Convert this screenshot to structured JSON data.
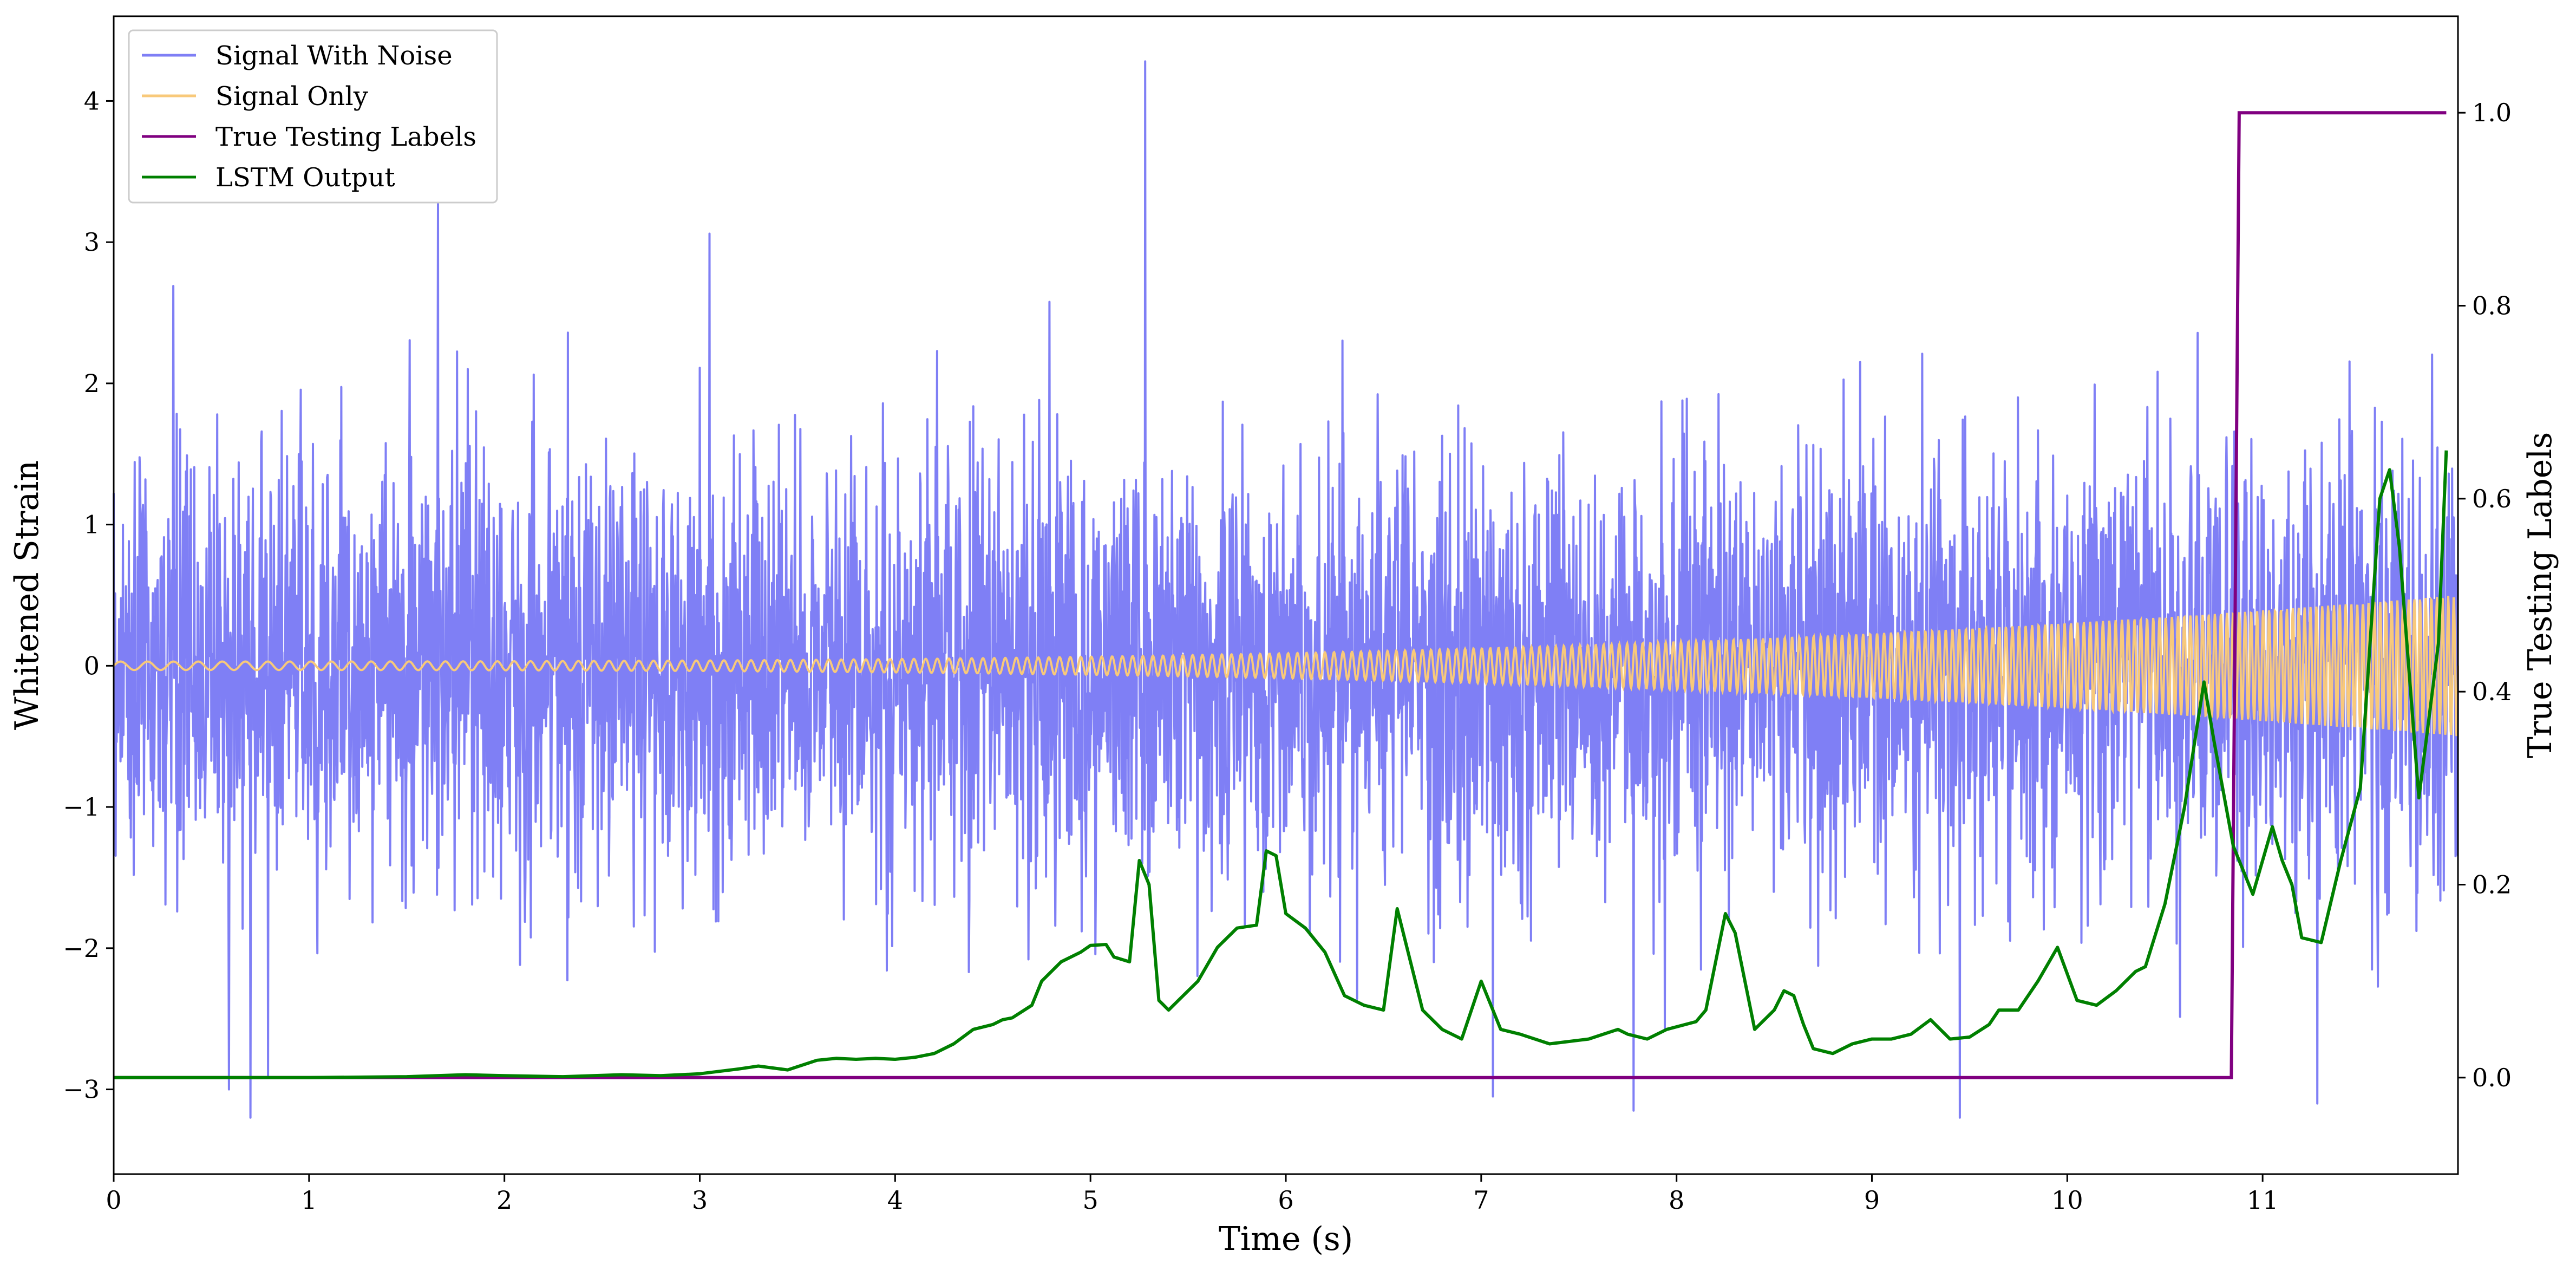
{
  "chart_data": {
    "type": "line",
    "xlabel": "Time (s)",
    "ylabel": "Whitened Strain",
    "ylabel_right": "True Testing Labels",
    "xlim": [
      0,
      12
    ],
    "ylim": [
      -3.6,
      4.6
    ],
    "ylim_right": [
      -0.1,
      1.1
    ],
    "x_ticks": [
      0,
      1,
      2,
      3,
      4,
      5,
      6,
      7,
      8,
      9,
      10,
      11
    ],
    "y_ticks": [
      -3,
      -2,
      -1,
      0,
      1,
      2,
      3,
      4
    ],
    "y_ticks_right": [
      0.0,
      0.2,
      0.4,
      0.6,
      0.8,
      1.0
    ],
    "x_tick_labels": [
      "0",
      "1",
      "2",
      "3",
      "4",
      "5",
      "6",
      "7",
      "8",
      "9",
      "10",
      "11"
    ],
    "y_tick_labels": [
      "−3",
      "−2",
      "−1",
      "0",
      "1",
      "2",
      "3",
      "4"
    ],
    "y_tick_labels_right": [
      "0.0",
      "0.2",
      "0.4",
      "0.6",
      "0.8",
      "1.0"
    ],
    "legend_position": "top-left",
    "legend": [
      {
        "name": "Signal With Noise",
        "color": "#7f7ff5"
      },
      {
        "name": "Signal Only",
        "color": "#f8c97a"
      },
      {
        "name": "True Testing Labels",
        "color": "#800080"
      },
      {
        "name": "LSTM Output",
        "color": "#008000"
      }
    ],
    "series": [
      {
        "name": "Signal With Noise",
        "axis": "left",
        "color": "#7f7ff5",
        "description_kind": "gaussian noise, std approx 0.75, range approx -3.2 to 4.3",
        "noise_std": 0.75,
        "sample_rate_hz": 400,
        "peaks": [
          [
            5.28,
            4.28
          ],
          [
            1.66,
            3.28
          ],
          [
            3.05,
            3.06
          ],
          [
            0.7,
            -3.2
          ],
          [
            9.45,
            -3.2
          ],
          [
            0.59,
            -3.0
          ],
          [
            7.06,
            -3.05
          ],
          [
            7.78,
            -3.15
          ],
          [
            11.28,
            -3.1
          ]
        ]
      },
      {
        "name": "Signal Only",
        "axis": "left",
        "color": "#f8c97a",
        "description_kind": "chirp, amplitude grows from 0.03 to 0.5, frequency grows from 7 Hz to 35 Hz",
        "amplitude_start": 0.03,
        "amplitude_end": 0.5,
        "freq_start_hz": 7,
        "freq_end_hz": 35
      },
      {
        "name": "True Testing Labels",
        "axis": "right",
        "color": "#800080",
        "x": [
          0,
          10.84,
          10.88,
          11.94
        ],
        "y": [
          0,
          0,
          1,
          1
        ]
      },
      {
        "name": "LSTM Output",
        "axis": "right",
        "color": "#008000",
        "x": [
          0,
          1.0,
          1.5,
          1.8,
          2.0,
          2.3,
          2.6,
          2.8,
          3.0,
          3.2,
          3.3,
          3.45,
          3.6,
          3.7,
          3.8,
          3.9,
          4.0,
          4.1,
          4.2,
          4.3,
          4.4,
          4.5,
          4.55,
          4.6,
          4.7,
          4.75,
          4.85,
          4.95,
          5.0,
          5.08,
          5.12,
          5.2,
          5.25,
          5.3,
          5.35,
          5.4,
          5.45,
          5.55,
          5.65,
          5.75,
          5.85,
          5.9,
          5.95,
          6.0,
          6.1,
          6.2,
          6.3,
          6.4,
          6.5,
          6.57,
          6.7,
          6.8,
          6.9,
          7.0,
          7.1,
          7.2,
          7.35,
          7.55,
          7.7,
          7.75,
          7.85,
          7.95,
          8.1,
          8.15,
          8.25,
          8.3,
          8.4,
          8.5,
          8.55,
          8.6,
          8.65,
          8.7,
          8.8,
          8.9,
          9.0,
          9.1,
          9.2,
          9.3,
          9.4,
          9.5,
          9.6,
          9.65,
          9.75,
          9.85,
          9.95,
          10.05,
          10.15,
          10.25,
          10.35,
          10.4,
          10.5,
          10.6,
          10.7,
          10.75,
          10.85,
          10.95,
          11.05,
          11.1,
          11.15,
          11.2,
          11.3,
          11.4,
          11.5,
          11.55,
          11.6,
          11.65,
          11.7,
          11.8,
          11.9,
          11.94
        ],
        "y": [
          0.0,
          0.0,
          0.001,
          0.003,
          0.002,
          0.001,
          0.003,
          0.002,
          0.004,
          0.009,
          0.012,
          0.008,
          0.018,
          0.02,
          0.019,
          0.02,
          0.019,
          0.021,
          0.025,
          0.035,
          0.05,
          0.055,
          0.06,
          0.062,
          0.075,
          0.1,
          0.12,
          0.13,
          0.137,
          0.138,
          0.125,
          0.12,
          0.225,
          0.2,
          0.08,
          0.07,
          0.08,
          0.1,
          0.135,
          0.155,
          0.158,
          0.235,
          0.23,
          0.17,
          0.155,
          0.13,
          0.085,
          0.075,
          0.07,
          0.175,
          0.07,
          0.05,
          0.04,
          0.1,
          0.05,
          0.045,
          0.035,
          0.04,
          0.05,
          0.045,
          0.04,
          0.05,
          0.058,
          0.07,
          0.17,
          0.15,
          0.05,
          0.07,
          0.09,
          0.085,
          0.055,
          0.03,
          0.025,
          0.035,
          0.04,
          0.04,
          0.045,
          0.06,
          0.04,
          0.042,
          0.055,
          0.07,
          0.07,
          0.1,
          0.135,
          0.08,
          0.075,
          0.09,
          0.11,
          0.115,
          0.18,
          0.28,
          0.41,
          0.35,
          0.24,
          0.19,
          0.26,
          0.225,
          0.2,
          0.145,
          0.14,
          0.225,
          0.3,
          0.45,
          0.6,
          0.63,
          0.55,
          0.29,
          0.45,
          0.65
        ]
      }
    ]
  }
}
